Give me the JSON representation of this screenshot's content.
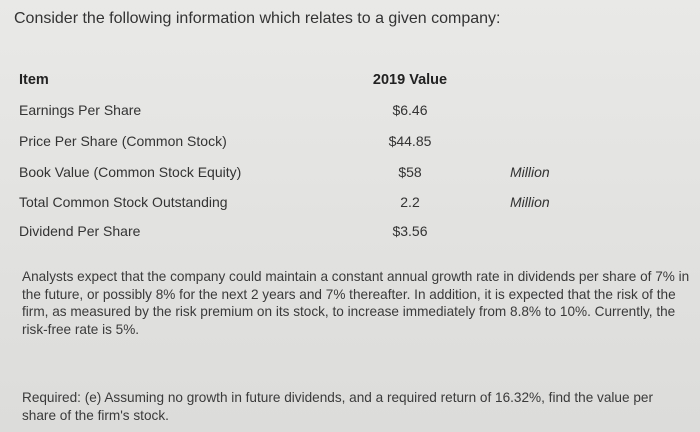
{
  "intro": "Consider the following information which relates to a given company:",
  "table": {
    "headers": {
      "item": "Item",
      "value": "2019 Value"
    },
    "rows": [
      {
        "item": "Earnings Per Share",
        "value": "$6.46",
        "unit": ""
      },
      {
        "item": "Price Per Share (Common Stock)",
        "value": "$44.85",
        "unit": ""
      },
      {
        "item": "Book Value (Common Stock Equity)",
        "value": "$58",
        "unit": "Million"
      },
      {
        "item": "Total Common Stock Outstanding",
        "value": "2.2",
        "unit": "Million"
      },
      {
        "item": "Dividend Per Share",
        "value": "$3.56",
        "unit": ""
      }
    ]
  },
  "paragraph": "Analysts expect that the company could maintain a constant annual growth rate in dividends per share of 7% in the future, or possibly 8% for the next 2 years and 7% thereafter. In addition, it is expected that the risk of the firm, as measured by the risk premium on its stock, to increase immediately from 8.8% to 10%. Currently, the risk-free rate is 5%.",
  "required": "Required: (e) Assuming no growth in future dividends, and a required return of 16.32%, find the value per share of the firm's stock."
}
